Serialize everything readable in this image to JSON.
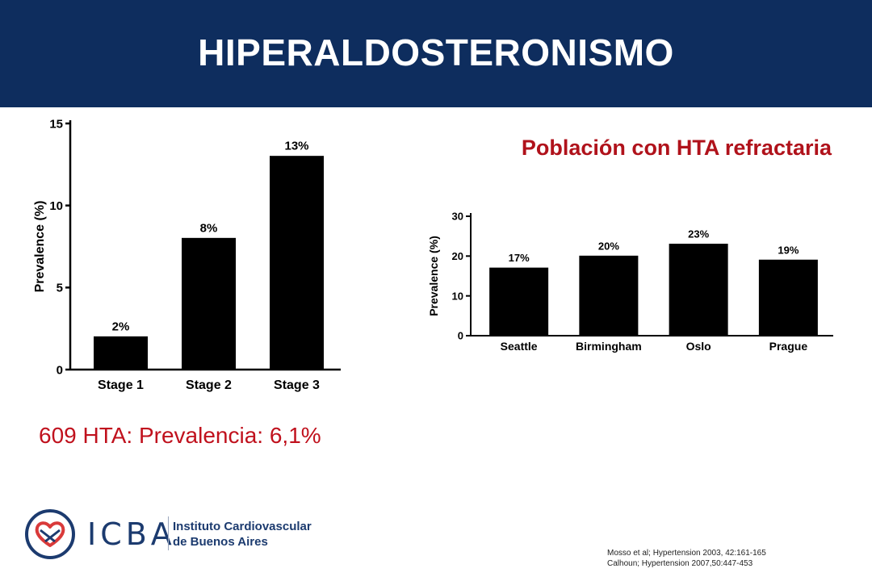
{
  "slide": {
    "title": "HIPERALDOSTERONISMO",
    "subtitle": "Población con HTA refractaria",
    "stat": "609 HTA: Prevalencia: 6,1%",
    "references": [
      "Mosso et al; Hypertension 2003, 42:161-165",
      "Calhoun; Hypertension 2007,50:447-453"
    ],
    "logo": {
      "acronym": "ICBA",
      "name_line1": "Instituto Cardiovascular",
      "name_line2": "de Buenos Aires",
      "icon": "heart-knot-icon"
    }
  },
  "colors": {
    "header_bg": "#0e2d5e",
    "accent_red": "#b0121b",
    "bar": "#000000",
    "logo_blue": "#1c3b6f"
  },
  "chart_data": [
    {
      "type": "bar",
      "ylabel": "Prevalence (%)",
      "xlabel": "",
      "ylim": [
        0,
        15
      ],
      "yticks": [
        0,
        5,
        10,
        15
      ],
      "categories": [
        "Stage 1",
        "Stage 2",
        "Stage 3"
      ],
      "values": [
        2,
        8,
        13
      ],
      "data_labels": [
        "2%",
        "8%",
        "13%"
      ],
      "grid": false
    },
    {
      "type": "bar",
      "ylabel": "Prevalence (%)",
      "xlabel": "",
      "ylim": [
        0,
        30
      ],
      "yticks": [
        0,
        10,
        20,
        30
      ],
      "categories": [
        "Seattle",
        "Birmingham",
        "Oslo",
        "Prague"
      ],
      "values": [
        17,
        20,
        23,
        19
      ],
      "data_labels": [
        "17%",
        "20%",
        "23%",
        "19%"
      ],
      "grid": false
    }
  ]
}
